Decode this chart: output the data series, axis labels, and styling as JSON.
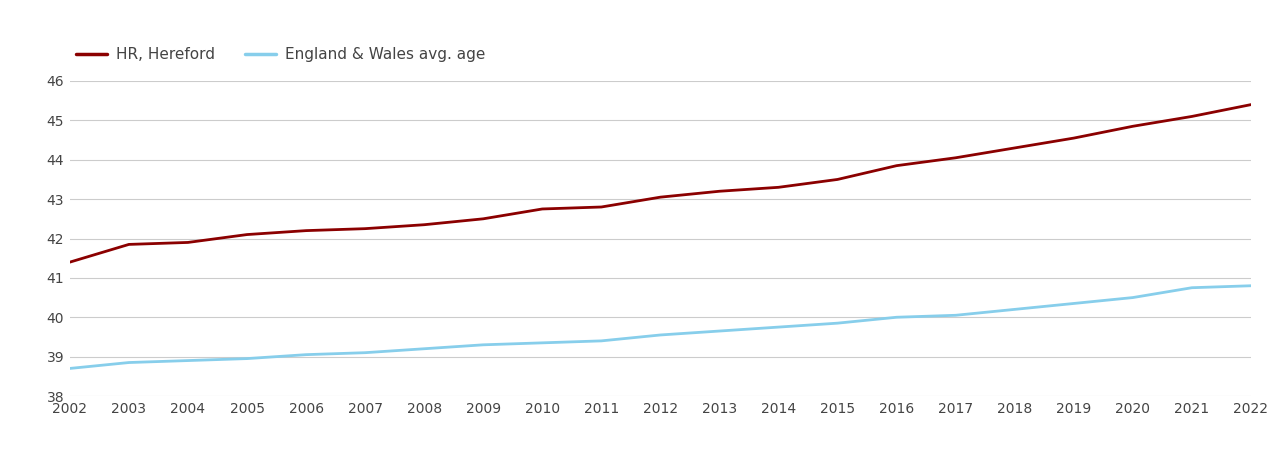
{
  "years": [
    2002,
    2003,
    2004,
    2005,
    2006,
    2007,
    2008,
    2009,
    2010,
    2011,
    2012,
    2013,
    2014,
    2015,
    2016,
    2017,
    2018,
    2019,
    2020,
    2021,
    2022
  ],
  "hr_hereford": [
    41.4,
    41.85,
    41.9,
    42.1,
    42.2,
    42.25,
    42.35,
    42.5,
    42.75,
    42.8,
    43.05,
    43.2,
    43.3,
    43.5,
    43.85,
    44.05,
    44.3,
    44.55,
    44.85,
    45.1,
    45.4
  ],
  "eng_wales": [
    38.7,
    38.85,
    38.9,
    38.95,
    39.05,
    39.1,
    39.2,
    39.3,
    39.35,
    39.4,
    39.55,
    39.65,
    39.75,
    39.85,
    40.0,
    40.05,
    40.2,
    40.35,
    40.5,
    40.75,
    40.8
  ],
  "hr_color": "#8B0000",
  "ew_color": "#87CEEB",
  "background_color": "#ffffff",
  "grid_color": "#cccccc",
  "ylim": [
    38,
    46
  ],
  "yticks": [
    38,
    39,
    40,
    41,
    42,
    43,
    44,
    45,
    46
  ],
  "legend_hr": "HR, Hereford",
  "legend_ew": "England & Wales avg. age",
  "line_width": 2.0,
  "font_color": "#444444",
  "tick_fontsize": 10
}
